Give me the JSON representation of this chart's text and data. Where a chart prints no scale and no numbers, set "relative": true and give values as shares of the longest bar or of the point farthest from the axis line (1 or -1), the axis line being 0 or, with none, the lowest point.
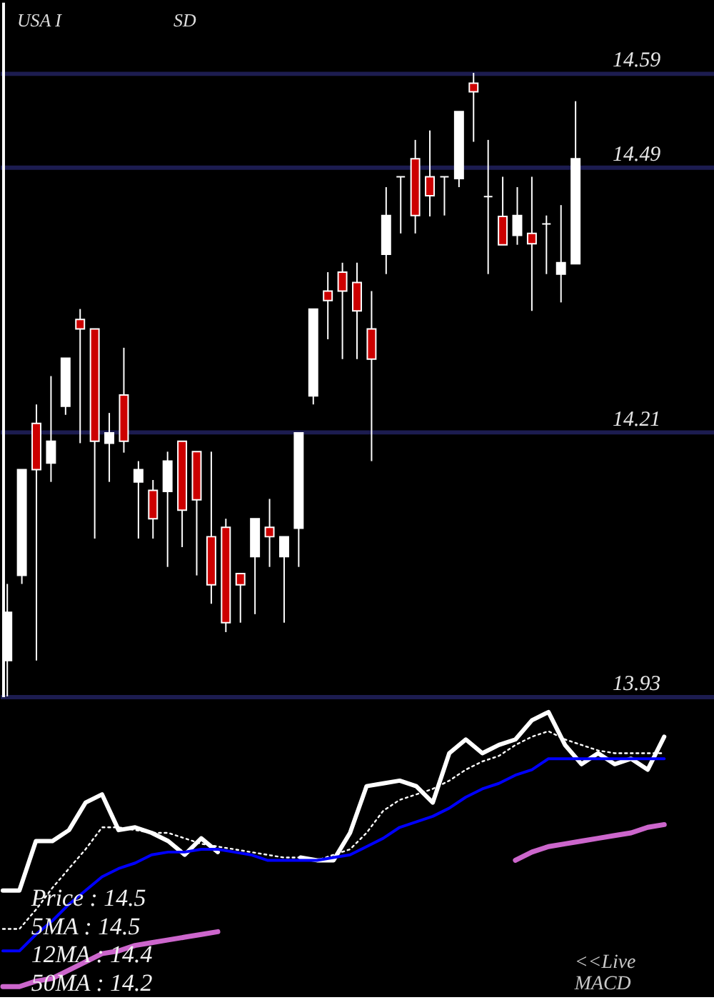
{
  "chart_data": [
    {
      "type": "candlestick",
      "title": "USA I",
      "annotations": [
        "SD"
      ],
      "categories": [
        null,
        null,
        null,
        null,
        null,
        null,
        null,
        null,
        null,
        null,
        null,
        null,
        null,
        null,
        null,
        null,
        null,
        null,
        null,
        null,
        null,
        null,
        null,
        null,
        null,
        null,
        null,
        null,
        null,
        null,
        null,
        null,
        null,
        null,
        null,
        null,
        null,
        null,
        null,
        null
      ],
      "ohlc": [
        [
          13.968,
          14.049,
          13.93,
          14.019
        ],
        [
          14.058,
          14.17,
          14.049,
          14.17
        ],
        [
          14.219,
          14.239,
          13.968,
          14.17
        ],
        [
          14.177,
          14.269,
          14.157,
          14.2
        ],
        [
          14.237,
          14.288,
          14.228,
          14.288
        ],
        [
          14.329,
          14.34,
          14.198,
          14.319
        ],
        [
          14.319,
          14.319,
          14.097,
          14.2
        ],
        [
          14.198,
          14.23,
          14.157,
          14.209
        ],
        [
          14.249,
          14.299,
          14.188,
          14.2
        ],
        [
          14.157,
          14.179,
          14.097,
          14.17
        ],
        [
          14.148,
          14.159,
          14.097,
          14.118
        ],
        [
          14.147,
          14.189,
          14.067,
          14.179
        ],
        [
          14.2,
          14.2,
          14.088,
          14.127
        ],
        [
          14.189,
          14.189,
          14.058,
          14.138
        ],
        [
          14.099,
          14.189,
          14.028,
          14.048
        ],
        [
          14.109,
          14.118,
          13.998,
          14.008
        ],
        [
          14.06,
          14.06,
          14.008,
          14.048
        ],
        [
          14.078,
          14.118,
          14.017,
          14.118
        ],
        [
          14.109,
          14.139,
          14.067,
          14.099
        ],
        [
          14.078,
          14.099,
          14.008,
          14.099
        ],
        [
          14.108,
          14.209,
          14.067,
          14.209
        ],
        [
          14.248,
          14.34,
          14.239,
          14.34
        ],
        [
          14.359,
          14.379,
          14.308,
          14.349
        ],
        [
          14.379,
          14.389,
          14.287,
          14.359
        ],
        [
          14.368,
          14.389,
          14.287,
          14.338
        ],
        [
          14.319,
          14.359,
          14.179,
          14.287
        ],
        [
          14.398,
          14.469,
          14.377,
          14.439
        ],
        [
          14.48,
          14.48,
          14.42,
          14.48
        ],
        [
          14.499,
          14.519,
          14.42,
          14.439
        ],
        [
          14.48,
          14.529,
          14.438,
          14.46
        ],
        [
          14.48,
          14.48,
          14.439,
          14.48
        ],
        [
          14.478,
          14.549,
          14.469,
          14.549
        ],
        [
          14.579,
          14.59,
          14.517,
          14.57
        ],
        [
          14.459,
          14.519,
          14.377,
          14.459
        ],
        [
          14.438,
          14.48,
          14.408,
          14.408
        ],
        [
          14.418,
          14.469,
          14.408,
          14.439
        ],
        [
          14.42,
          14.48,
          14.338,
          14.409
        ],
        [
          14.43,
          14.439,
          14.377,
          14.43
        ],
        [
          14.377,
          14.45,
          14.347,
          14.389
        ],
        [
          14.388,
          14.56,
          14.388,
          14.499
        ]
      ],
      "colors": [
        "#ffffff",
        "#ffffff",
        "#cc0000",
        "#ffffff",
        "#ffffff",
        "#cc0000",
        "#cc0000",
        "#ffffff",
        "#cc0000",
        "#ffffff",
        "#cc0000",
        "#ffffff",
        "#cc0000",
        "#cc0000",
        "#cc0000",
        "#cc0000",
        "#cc0000",
        "#ffffff",
        "#cc0000",
        "#ffffff",
        "#ffffff",
        "#ffffff",
        "#cc0000",
        "#cc0000",
        "#cc0000",
        "#cc0000",
        "#ffffff",
        "#ffffff",
        "#cc0000",
        "#cc0000",
        "#ffffff",
        "#ffffff",
        "#cc0000",
        "#ffffff",
        "#cc0000",
        "#ffffff",
        "#cc0000",
        "#ffffff",
        "#ffffff",
        "#ffffff"
      ],
      "ylim": [
        13.93,
        14.665
      ],
      "yticks": [
        13.93,
        14.21,
        14.49,
        14.59
      ],
      "grid": "y",
      "tick_labels": "y"
    },
    {
      "type": "line",
      "relative": true,
      "tick_labels": false,
      "line_style": "solid",
      "categories": [
        null,
        null,
        null,
        null,
        null,
        null,
        null,
        null,
        null,
        null,
        null,
        null,
        null,
        null,
        null,
        null,
        null,
        null,
        null,
        null,
        null,
        null,
        null,
        null,
        null,
        null,
        null,
        null,
        null,
        null,
        null,
        null,
        null,
        null,
        null,
        null,
        null,
        null,
        null,
        null,
        null
      ],
      "series": [
        {
          "color": "#ffffff",
          "values": [
            0.35,
            0.35,
            0.53,
            0.53,
            0.57,
            0.67,
            0.7,
            0.57,
            0.58,
            0.56,
            0.53,
            0.48,
            0.54,
            0.49,
            null,
            null,
            null,
            null,
            0.47,
            0.46,
            0.46,
            0.56,
            0.73,
            0.74,
            0.75,
            0.73,
            0.67,
            0.85,
            0.9,
            0.85,
            0.88,
            0.9,
            0.97,
            1.0,
            0.88,
            0.81,
            0.85,
            0.81,
            0.83,
            0.79,
            0.91
          ]
        },
        {
          "color": "#ffffff",
          "line_style": "dotted",
          "values": [
            0.21,
            0.21,
            0.28,
            0.36,
            0.43,
            0.5,
            0.58,
            0.58,
            0.57,
            0.56,
            0.56,
            0.54,
            0.52,
            0.51,
            0.5,
            0.49,
            0.48,
            0.47,
            0.47,
            0.46,
            0.48,
            0.5,
            0.56,
            0.64,
            0.68,
            0.7,
            0.72,
            0.75,
            0.79,
            0.82,
            0.84,
            0.88,
            0.91,
            0.93,
            0.9,
            0.88,
            0.86,
            0.85,
            0.85,
            0.85,
            0.85
          ]
        },
        {
          "color": "#0000ff",
          "values": [
            0.13,
            0.13,
            0.19,
            0.24,
            0.3,
            0.35,
            0.4,
            0.43,
            0.45,
            0.48,
            0.49,
            0.49,
            0.5,
            0.5,
            0.49,
            0.48,
            0.46,
            0.46,
            0.46,
            0.46,
            0.47,
            0.48,
            0.51,
            0.54,
            0.58,
            0.6,
            0.62,
            0.65,
            0.69,
            0.72,
            0.74,
            0.77,
            0.79,
            0.83,
            0.83,
            0.83,
            0.83,
            0.83,
            0.83,
            0.83,
            0.83
          ]
        },
        {
          "color": "#cc66cc",
          "values": [
            0,
            0,
            0.02,
            0.03,
            0.06,
            0.09,
            0.12,
            0.13,
            0.15,
            0.16,
            0.17,
            0.18,
            0.19,
            0.2,
            null,
            null,
            null,
            null,
            null,
            null,
            null,
            null,
            null,
            null,
            null,
            null,
            null,
            null,
            null,
            null,
            null,
            0.46,
            0.49,
            0.51,
            0.52,
            0.53,
            0.54,
            0.55,
            0.56,
            0.58,
            0.59
          ]
        }
      ],
      "annotations": [
        "Price : 14.5",
        "5MA : 14.5",
        "12MA : 14.4",
        "50MA : 14.2",
        "<<Live",
        "MACD"
      ]
    }
  ]
}
